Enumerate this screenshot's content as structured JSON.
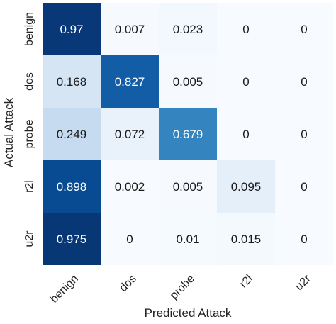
{
  "chart_data": {
    "type": "heatmap",
    "xlabel": "Predicted Attack",
    "ylabel": "Actual Attack",
    "x_categories": [
      "benign",
      "dos",
      "probe",
      "r2l",
      "u2r"
    ],
    "y_categories": [
      "benign",
      "dos",
      "probe",
      "r2l",
      "u2r"
    ],
    "values": [
      [
        0.97,
        0.007,
        0.023,
        0,
        0
      ],
      [
        0.168,
        0.827,
        0.005,
        0,
        0
      ],
      [
        0.249,
        0.072,
        0.679,
        0,
        0
      ],
      [
        0.898,
        0.002,
        0.005,
        0.095,
        0
      ],
      [
        0.975,
        0,
        0.01,
        0.015,
        0
      ]
    ],
    "cell_labels": [
      [
        "0.97",
        "0.007",
        "0.023",
        "0",
        "0"
      ],
      [
        "0.168",
        "0.827",
        "0.005",
        "0",
        "0"
      ],
      [
        "0.249",
        "0.072",
        "0.679",
        "0",
        "0"
      ],
      [
        "0.898",
        "0.002",
        "0.005",
        "0.095",
        "0"
      ],
      [
        "0.975",
        "0",
        "0.01",
        "0.015",
        "0"
      ]
    ],
    "colormap": "Blues",
    "vmin": 0,
    "vmax": 1,
    "colors": {
      "low": "#f7fbff",
      "high": "#08306b",
      "text_dark": "#1a1a1a",
      "text_light": "#ffffff"
    }
  }
}
